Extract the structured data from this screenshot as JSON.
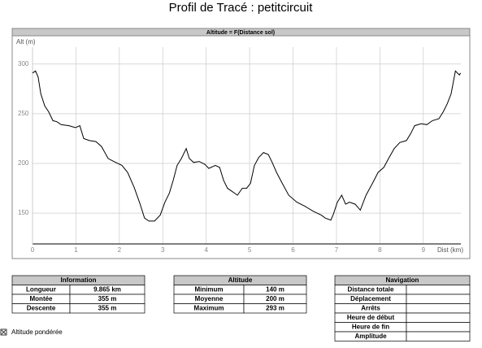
{
  "window_title": "Profil de Tracé : petitcircuit",
  "chart_data": {
    "type": "line",
    "title": "Altitude = F(Distance sol)",
    "y_label": "Alt (m)",
    "x_label": "Dist (km)",
    "x": [
      0,
      0.07,
      0.13,
      0.19,
      0.28,
      0.37,
      0.47,
      0.56,
      0.66,
      0.84,
      0.99,
      1.09,
      1.18,
      1.31,
      1.46,
      1.59,
      1.74,
      1.87,
      2.06,
      2.19,
      2.34,
      2.47,
      2.58,
      2.68,
      2.81,
      2.94,
      3.05,
      3.15,
      3.24,
      3.33,
      3.43,
      3.54,
      3.61,
      3.71,
      3.84,
      3.97,
      4.06,
      4.21,
      4.31,
      4.4,
      4.49,
      4.59,
      4.72,
      4.83,
      4.93,
      5.02,
      5.11,
      5.21,
      5.32,
      5.43,
      5.52,
      5.62,
      5.75,
      5.9,
      6.09,
      6.27,
      6.46,
      6.65,
      6.74,
      6.87,
      6.93,
      7.02,
      7.12,
      7.21,
      7.3,
      7.43,
      7.55,
      7.68,
      7.83,
      7.96,
      8.09,
      8.2,
      8.33,
      8.46,
      8.61,
      8.71,
      8.8,
      8.95,
      9.08,
      9.21,
      9.36,
      9.46,
      9.55,
      9.64,
      9.74,
      9.83,
      9.86
    ],
    "values": [
      291,
      293,
      287,
      270,
      258,
      252,
      243,
      242,
      239,
      238,
      236,
      238,
      225,
      223,
      222,
      217,
      205,
      202,
      198,
      191,
      176,
      160,
      145,
      142,
      142,
      148,
      161,
      170,
      183,
      198,
      205,
      215,
      205,
      201,
      202,
      199,
      195,
      198,
      196,
      183,
      175,
      172,
      168,
      175,
      175,
      180,
      198,
      206,
      211,
      209,
      201,
      191,
      180,
      168,
      161,
      157,
      152,
      148,
      145,
      143,
      149,
      161,
      168,
      159,
      161,
      159,
      153,
      168,
      180,
      191,
      196,
      205,
      215,
      221,
      223,
      230,
      238,
      240,
      239,
      243,
      245,
      252,
      260,
      270,
      293,
      289,
      291
    ],
    "color": "#000000",
    "xlim": [
      0,
      9.865
    ],
    "ylim": [
      119,
      317
    ],
    "xticks": [
      0,
      1,
      2,
      3,
      4,
      5,
      6,
      7,
      8,
      9
    ],
    "yticks": [
      150,
      200,
      250,
      300
    ],
    "grid": true
  },
  "information": {
    "title": "Information",
    "rows": [
      [
        "Longueur",
        "9.865 km"
      ],
      [
        "Montée",
        "355 m"
      ],
      [
        "Descente",
        "355 m"
      ]
    ]
  },
  "altitude": {
    "title": "Altitude",
    "rows": [
      [
        "Minimum",
        "140 m"
      ],
      [
        "Moyenne",
        "200 m"
      ],
      [
        "Maximum",
        "293 m"
      ]
    ]
  },
  "navigation": {
    "title": "Navigation",
    "rows": [
      "Distance totale",
      "Déplacement",
      "Arrêts",
      "Heure de début",
      "Heure de fin",
      "Amplitude"
    ]
  },
  "checkbox_label": "Altitude pondérée"
}
